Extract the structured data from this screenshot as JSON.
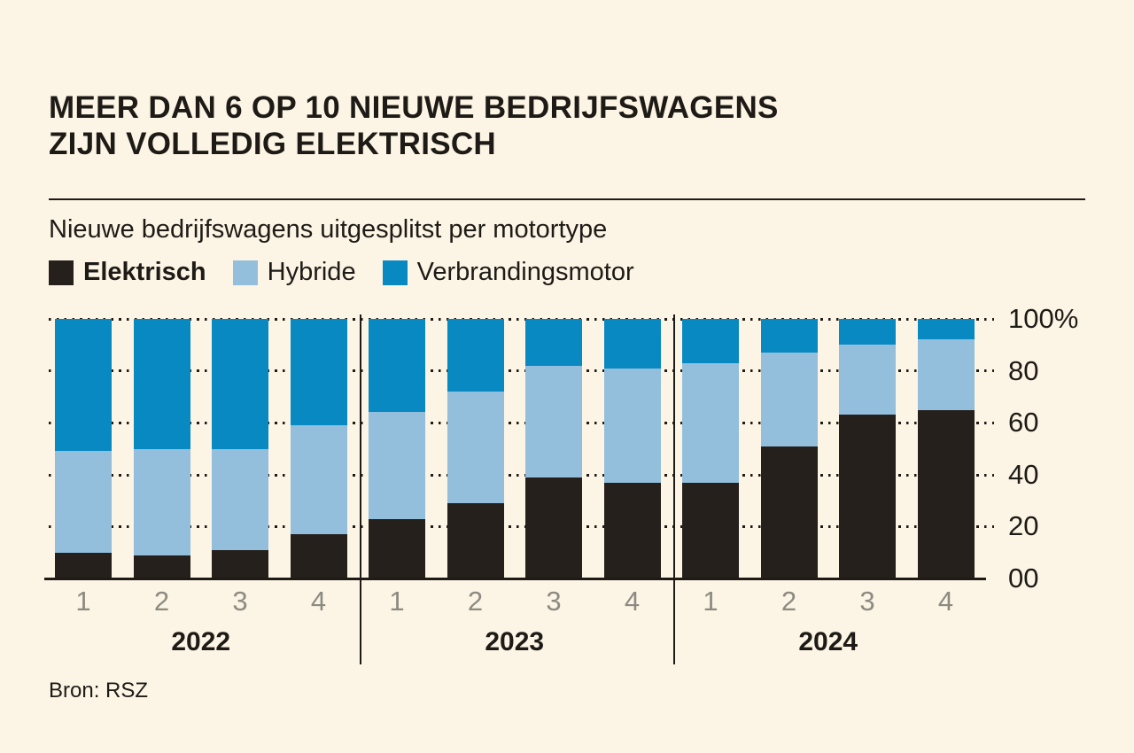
{
  "header": {
    "title_line1": "MEER DAN 6 OP 10 NIEUWE BEDRIJFSWAGENS",
    "title_line2": "ZIJN VOLLEDIG ELEKTRISCH",
    "subtitle": "Nieuwe bedrijfswagens uitgesplitst per motortype"
  },
  "legend": [
    {
      "label": "Elektrisch",
      "color": "#26201d",
      "bold": true
    },
    {
      "label": "Hybride",
      "color": "#93bfdc",
      "bold": false
    },
    {
      "label": "Verbrandingsmotor",
      "color": "#0889c1",
      "bold": false
    }
  ],
  "chart_data": {
    "type": "bar",
    "stacked": true,
    "unit": "%",
    "title": "Nieuwe bedrijfswagens uitgesplitst per motortype",
    "x_groups": [
      {
        "label": "2022",
        "quarters": [
          "1",
          "2",
          "3",
          "4"
        ]
      },
      {
        "label": "2023",
        "quarters": [
          "1",
          "2",
          "3",
          "4"
        ]
      },
      {
        "label": "2024",
        "quarters": [
          "1",
          "2",
          "3",
          "4"
        ]
      }
    ],
    "categories": [
      "2022-1",
      "2022-2",
      "2022-3",
      "2022-4",
      "2023-1",
      "2023-2",
      "2023-3",
      "2023-4",
      "2024-1",
      "2024-2",
      "2024-3",
      "2024-4"
    ],
    "series": [
      {
        "name": "Elektrisch",
        "color": "#26201d",
        "values": [
          10,
          9,
          11,
          17,
          23,
          29,
          39,
          37,
          37,
          51,
          63,
          65
        ]
      },
      {
        "name": "Hybride",
        "color": "#93bfdc",
        "values": [
          39,
          41,
          39,
          42,
          41,
          43,
          43,
          44,
          46,
          36,
          27,
          27
        ]
      },
      {
        "name": "Verbrandingsmotor",
        "color": "#0889c1",
        "values": [
          51,
          50,
          50,
          41,
          36,
          28,
          18,
          19,
          17,
          13,
          10,
          8
        ]
      }
    ],
    "y_ticks": [
      "100%",
      "80",
      "60",
      "40",
      "20",
      "00"
    ],
    "y_tick_values": [
      100,
      80,
      60,
      40,
      20,
      0
    ],
    "ylim": [
      0,
      100
    ],
    "grid": "dotted horizontal, labels right"
  },
  "source": "Bron: RSZ",
  "colors": {
    "background": "#fcf4e4",
    "ink": "#1e1b17",
    "quarter_label": "#8d8a82"
  }
}
